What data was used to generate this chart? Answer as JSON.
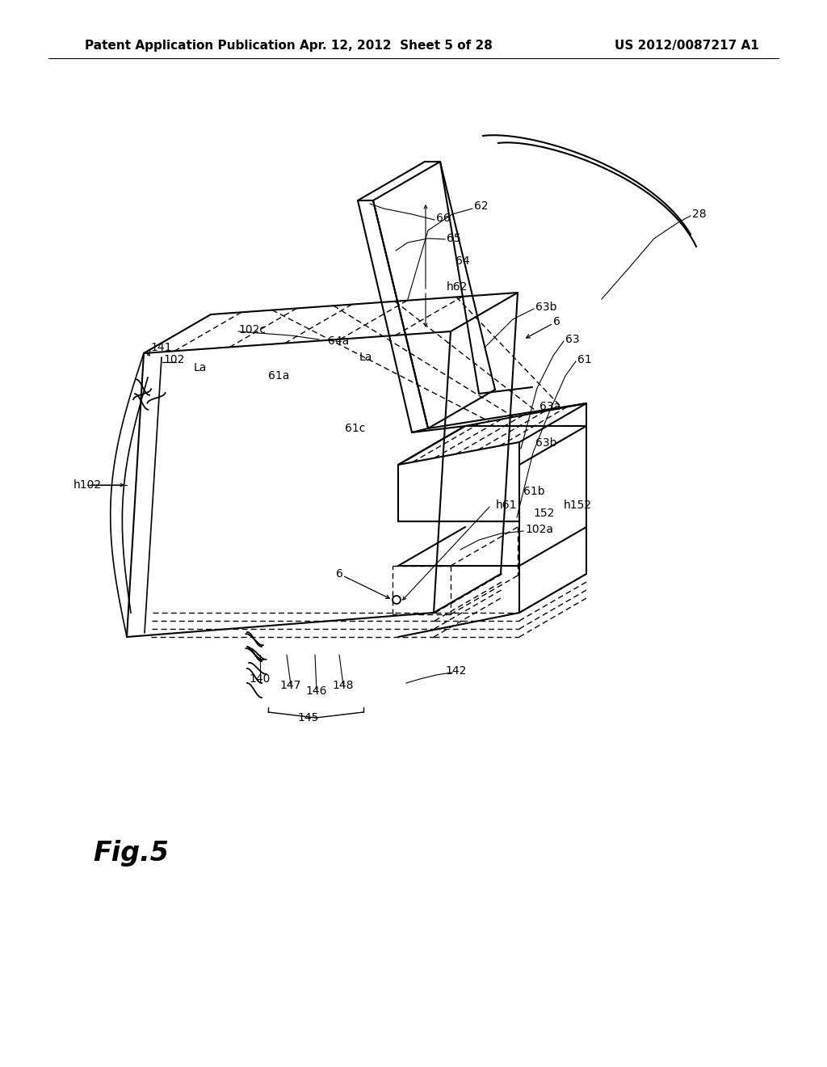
{
  "bg_color": "#ffffff",
  "header_left": "Patent Application Publication",
  "header_center": "Apr. 12, 2012  Sheet 5 of 28",
  "header_right": "US 2012/0087217 A1",
  "fig_label": "Fig.5",
  "header_font_size": 11,
  "fig_label_font_size": 24,
  "label_font_size": 10
}
